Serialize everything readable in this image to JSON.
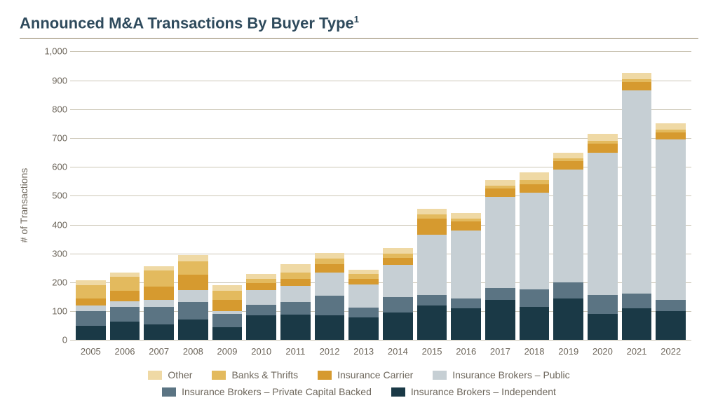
{
  "title": "Announced M&A Transactions By Buyer Type",
  "title_sup": "1",
  "title_color": "#2e4a5c",
  "title_fontsize": 22,
  "hr_color": "#8b7d5e",
  "chart": {
    "type": "stacked-bar",
    "ylabel": "# of Transactions",
    "label_fontsize": 14,
    "axis_text_color": "#6d665b",
    "ylim": [
      0,
      1000
    ],
    "ytick_step": 100,
    "yticks": [
      0,
      100,
      200,
      300,
      400,
      500,
      600,
      700,
      800,
      900,
      1000
    ],
    "grid_color": "#ccc6b6",
    "background_color": "#ffffff",
    "bar_width": 0.75,
    "categories": [
      "2005",
      "2006",
      "2007",
      "2008",
      "2009",
      "2010",
      "2011",
      "2012",
      "2013",
      "2014",
      "2015",
      "2016",
      "2017",
      "2018",
      "2019",
      "2020",
      "2021",
      "2022"
    ],
    "series": [
      {
        "name": "Insurance Brokers – Independent",
        "color": "#1a3946",
        "values": [
          50,
          65,
          55,
          72,
          45,
          85,
          88,
          85,
          78,
          95,
          120,
          110,
          140,
          115,
          145,
          90,
          110,
          100
        ]
      },
      {
        "name": "Insurance Brokers – Private Capital Backed",
        "color": "#5b7483",
        "values": [
          50,
          50,
          60,
          60,
          45,
          38,
          45,
          68,
          35,
          55,
          35,
          35,
          40,
          60,
          55,
          65,
          50,
          40
        ]
      },
      {
        "name": "Insurance Brokers – Public",
        "color": "#c6cfd4",
        "values": [
          20,
          20,
          25,
          40,
          10,
          50,
          55,
          80,
          80,
          110,
          210,
          235,
          315,
          335,
          390,
          495,
          705,
          555
        ]
      },
      {
        "name": "Insurance Carrier",
        "color": "#d69a2f",
        "values": [
          25,
          35,
          45,
          55,
          40,
          25,
          25,
          30,
          20,
          25,
          55,
          30,
          30,
          30,
          30,
          30,
          30,
          25
        ]
      },
      {
        "name": "Banks & Thrifts",
        "color": "#e3ba5e",
        "values": [
          45,
          50,
          55,
          45,
          30,
          15,
          20,
          20,
          15,
          15,
          15,
          10,
          10,
          15,
          10,
          10,
          10,
          10
        ]
      },
      {
        "name": "Other",
        "color": "#efd9a5",
        "values": [
          18,
          15,
          15,
          22,
          20,
          15,
          30,
          20,
          15,
          20,
          20,
          20,
          20,
          25,
          20,
          25,
          20,
          20
        ]
      }
    ],
    "legend_order": [
      "Other",
      "Banks & Thrifts",
      "Insurance Carrier",
      "Insurance Brokers – Public",
      "Insurance Brokers – Private Capital Backed",
      "Insurance Brokers – Independent"
    ]
  }
}
